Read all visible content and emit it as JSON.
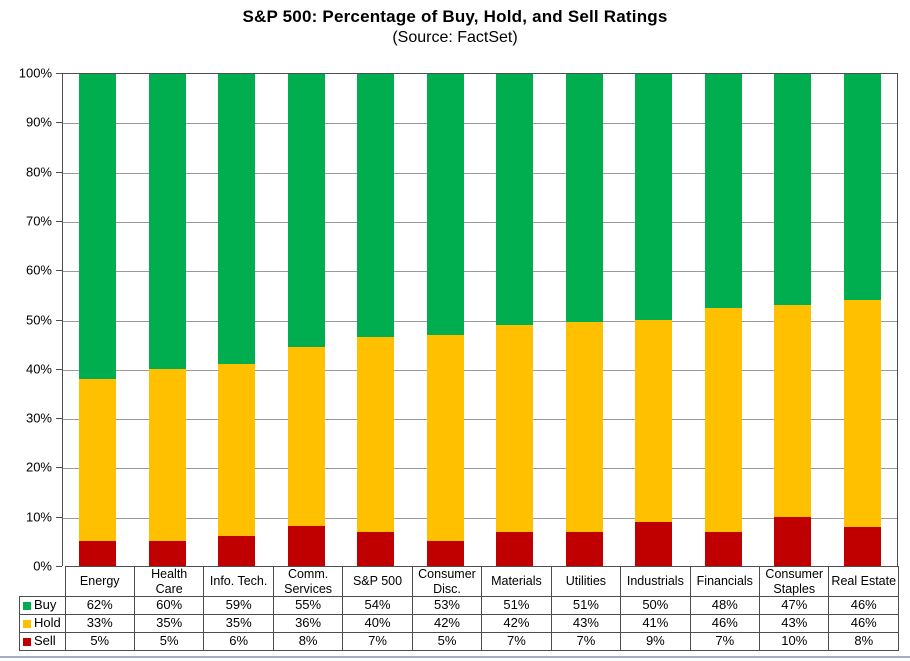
{
  "chart_data": {
    "type": "bar",
    "variant": "stacked-100",
    "title": "S&P 500: Percentage of Buy, Hold, and Sell Ratings",
    "subtitle": "(Source: FactSet)",
    "categories": [
      "Energy",
      "Health Care",
      "Info. Tech.",
      "Comm. Services",
      "S&P 500",
      "Consumer Disc.",
      "Materials",
      "Utilities",
      "Industrials",
      "Financials",
      "Consumer Staples",
      "Real Estate"
    ],
    "series": [
      {
        "name": "Buy",
        "color": "#00AE4F",
        "values": [
          62,
          60,
          59,
          55,
          54,
          53,
          51,
          51,
          50,
          48,
          47,
          46
        ]
      },
      {
        "name": "Hold",
        "color": "#FFC000",
        "values": [
          33,
          35,
          35,
          36,
          40,
          42,
          42,
          43,
          41,
          46,
          43,
          46
        ]
      },
      {
        "name": "Sell",
        "color": "#C00000",
        "values": [
          5,
          5,
          6,
          8,
          7,
          5,
          7,
          7,
          9,
          7,
          10,
          8
        ]
      }
    ],
    "value_suffix": "%",
    "ylim": [
      0,
      100
    ],
    "ytick_labels": [
      "0%",
      "10%",
      "20%",
      "30%",
      "40%",
      "50%",
      "60%",
      "70%",
      "80%",
      "90%",
      "100%"
    ],
    "grid": "horizontal",
    "legend_position": "table-left",
    "gridline_color": "#9a9a9a"
  }
}
